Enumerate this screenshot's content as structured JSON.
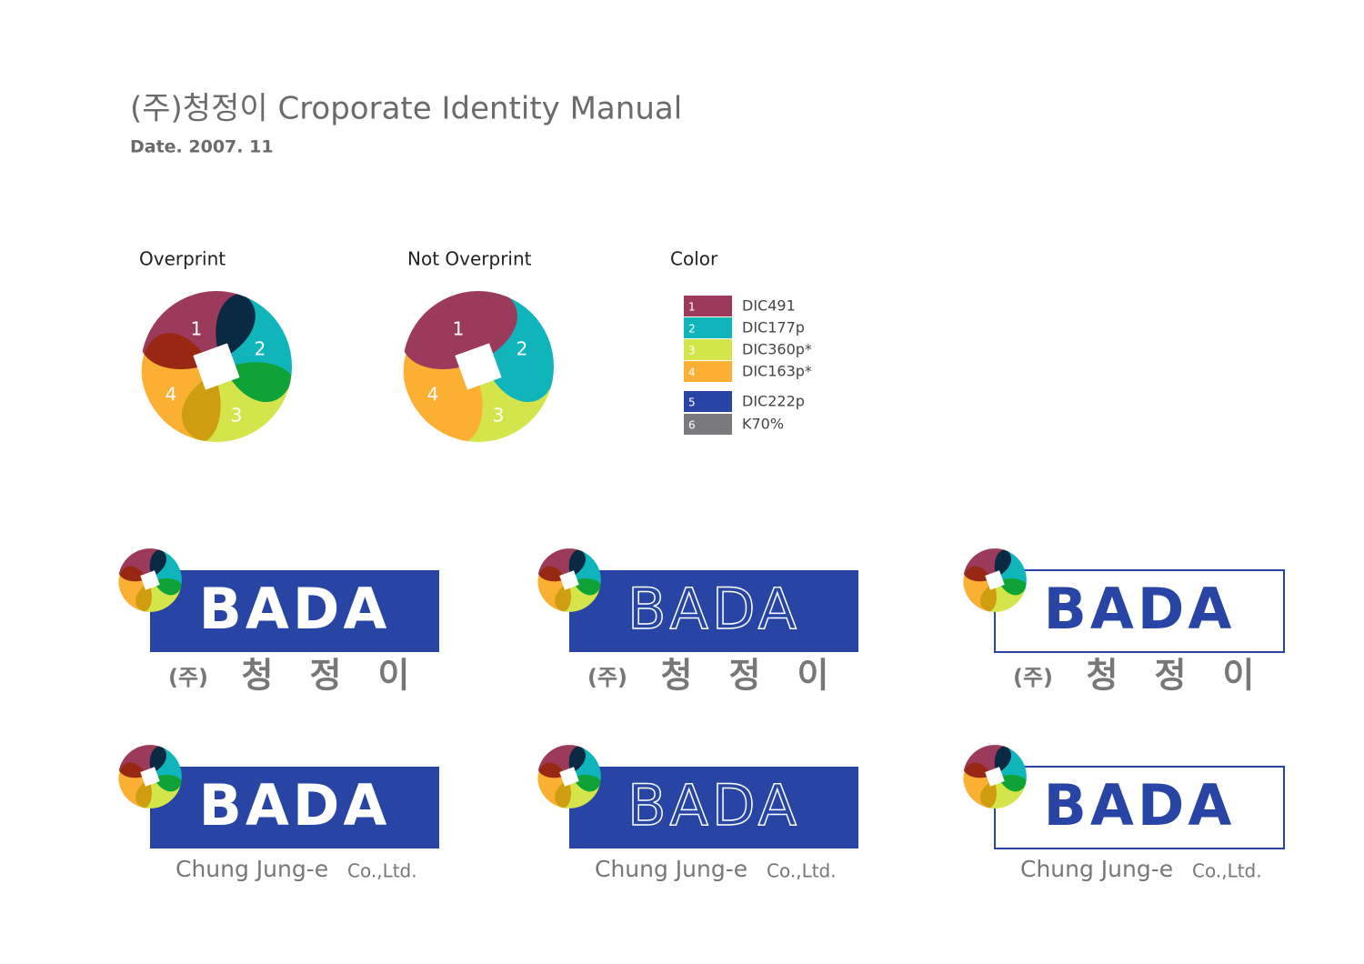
{
  "header": {
    "title": "(주)청정이 Croporate Identity Manual",
    "date": "Date. 2007. 11"
  },
  "symbols": [
    {
      "label": "Overprint",
      "numbers": [
        "1",
        "2",
        "3",
        "4"
      ],
      "overprint": true
    },
    {
      "label": "Not Overprint",
      "numbers": [
        "1",
        "2",
        "3",
        "4"
      ],
      "overprint": false
    }
  ],
  "color": {
    "label": "Color",
    "swatches": [
      {
        "number": "1",
        "name": "DIC491",
        "color": "#9c3a5c"
      },
      {
        "number": "2",
        "name": "DIC177p",
        "color": "#10b5bb"
      },
      {
        "number": "3",
        "name": "DIC360p*",
        "color": "#d3e54a"
      },
      {
        "number": "4",
        "name": "DIC163p*",
        "color": "#fbb034"
      },
      {
        "number": "5",
        "name": "DIC222p",
        "color": "#2845a5"
      },
      {
        "number": "6",
        "name": "K70%",
        "color": "#7a7a7e"
      }
    ]
  },
  "logos": {
    "wordmark": "BADA",
    "korean": {
      "prefix": "(주)",
      "chars": [
        "청",
        "정",
        "이"
      ]
    },
    "english": {
      "name": "Chung Jung-e",
      "suffix": "Co.,Ltd."
    },
    "variants": [
      {
        "style": "filled",
        "subline": "korean"
      },
      {
        "style": "filled-outline-text",
        "subline": "korean"
      },
      {
        "style": "outline",
        "subline": "korean"
      },
      {
        "style": "filled",
        "subline": "english"
      },
      {
        "style": "filled-outline-text",
        "subline": "english"
      },
      {
        "style": "outline",
        "subline": "english"
      }
    ]
  }
}
